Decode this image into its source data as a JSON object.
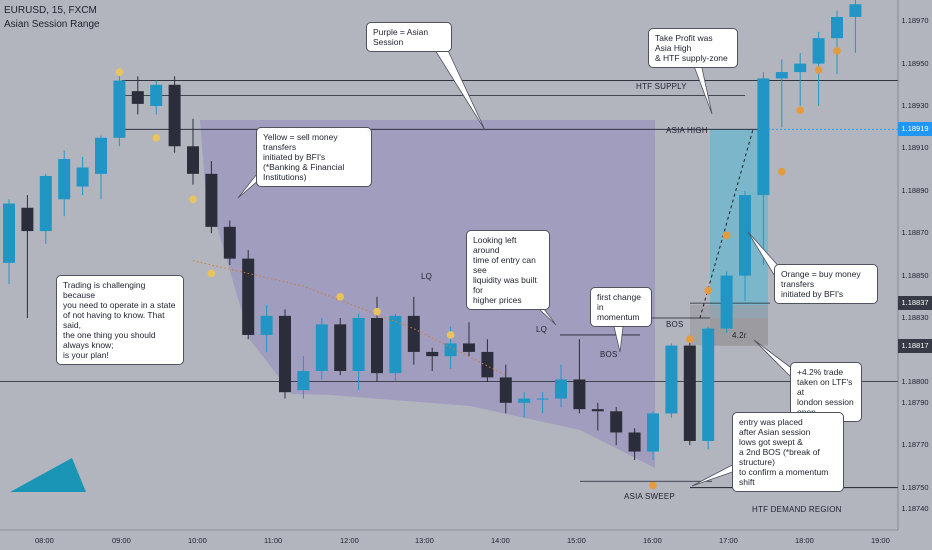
{
  "header": {
    "symbol": "EURUSD, 15, FXCM",
    "indicator": "Asian Session Range"
  },
  "colors": {
    "bg": "#b2b5be",
    "bull": "#2196c5",
    "bear": "#2b2e3a",
    "session": "#9b95be",
    "yellow": "#e8c45c",
    "orange": "#e59b3c",
    "longzone": "#4fb6d6",
    "price_tag_blue": "#2196f3",
    "price_tag_dark": "#363a45"
  },
  "chart_data": {
    "type": "candlestick",
    "ylim": [
      1.1873,
      1.1898
    ],
    "y_ticks": [
      "1.18970",
      "1.18950",
      "1.18930",
      "1.18919",
      "1.18910",
      "1.18890",
      "1.18870",
      "1.18850",
      "1.18837",
      "1.18830",
      "1.18817",
      "1.18800",
      "1.18790",
      "1.18770",
      "1.18750",
      "1.18740"
    ],
    "x_ticks": [
      "08:00",
      "09:00",
      "10:00",
      "11:00",
      "12:00",
      "13:00",
      "14:00",
      "15:00",
      "16:00",
      "17:00",
      "18:00",
      "19:00"
    ],
    "current_price": "1.18919",
    "candles": [
      {
        "o": 1.18856,
        "h": 1.18886,
        "l": 1.18846,
        "c": 1.18884
      },
      {
        "o": 1.18882,
        "h": 1.18888,
        "l": 1.1883,
        "c": 1.18871
      },
      {
        "o": 1.18871,
        "h": 1.18898,
        "l": 1.18865,
        "c": 1.18897
      },
      {
        "o": 1.18886,
        "h": 1.18909,
        "l": 1.18878,
        "c": 1.18905
      },
      {
        "o": 1.18892,
        "h": 1.18906,
        "l": 1.18888,
        "c": 1.18901
      },
      {
        "o": 1.18898,
        "h": 1.18916,
        "l": 1.18886,
        "c": 1.18915
      },
      {
        "o": 1.18915,
        "h": 1.18944,
        "l": 1.18911,
        "c": 1.18942
      },
      {
        "o": 1.18937,
        "h": 1.18944,
        "l": 1.18926,
        "c": 1.18931
      },
      {
        "o": 1.1893,
        "h": 1.18942,
        "l": 1.18926,
        "c": 1.1894
      },
      {
        "o": 1.1894,
        "h": 1.18944,
        "l": 1.18908,
        "c": 1.18911
      },
      {
        "o": 1.18911,
        "h": 1.18924,
        "l": 1.18893,
        "c": 1.18898
      },
      {
        "o": 1.18898,
        "h": 1.18904,
        "l": 1.1887,
        "c": 1.18873
      },
      {
        "o": 1.18873,
        "h": 1.18876,
        "l": 1.18855,
        "c": 1.18858
      },
      {
        "o": 1.18858,
        "h": 1.18862,
        "l": 1.1882,
        "c": 1.18822
      },
      {
        "o": 1.18822,
        "h": 1.18836,
        "l": 1.18814,
        "c": 1.18831
      },
      {
        "o": 1.18831,
        "h": 1.18834,
        "l": 1.18792,
        "c": 1.18795
      },
      {
        "o": 1.18796,
        "h": 1.18812,
        "l": 1.18792,
        "c": 1.18805
      },
      {
        "o": 1.18805,
        "h": 1.1883,
        "l": 1.18801,
        "c": 1.18827
      },
      {
        "o": 1.18827,
        "h": 1.1883,
        "l": 1.18803,
        "c": 1.18805
      },
      {
        "o": 1.18805,
        "h": 1.18832,
        "l": 1.18796,
        "c": 1.1883
      },
      {
        "o": 1.1883,
        "h": 1.1884,
        "l": 1.188,
        "c": 1.18804
      },
      {
        "o": 1.18804,
        "h": 1.18832,
        "l": 1.188,
        "c": 1.18831
      },
      {
        "o": 1.18831,
        "h": 1.1884,
        "l": 1.18808,
        "c": 1.18814
      },
      {
        "o": 1.18814,
        "h": 1.18816,
        "l": 1.18805,
        "c": 1.18812
      },
      {
        "o": 1.18812,
        "h": 1.18826,
        "l": 1.18806,
        "c": 1.18818
      },
      {
        "o": 1.18818,
        "h": 1.18828,
        "l": 1.18812,
        "c": 1.18814
      },
      {
        "o": 1.18814,
        "h": 1.1882,
        "l": 1.188,
        "c": 1.18802
      },
      {
        "o": 1.18802,
        "h": 1.18808,
        "l": 1.18785,
        "c": 1.1879
      },
      {
        "o": 1.1879,
        "h": 1.18795,
        "l": 1.18783,
        "c": 1.18792
      },
      {
        "o": 1.18792,
        "h": 1.18795,
        "l": 1.18785,
        "c": 1.18792
      },
      {
        "o": 1.18792,
        "h": 1.18808,
        "l": 1.18788,
        "c": 1.18801
      },
      {
        "o": 1.18801,
        "h": 1.1882,
        "l": 1.18785,
        "c": 1.18787
      },
      {
        "o": 1.18787,
        "h": 1.1879,
        "l": 1.18777,
        "c": 1.18786
      },
      {
        "o": 1.18786,
        "h": 1.18788,
        "l": 1.1877,
        "c": 1.18776
      },
      {
        "o": 1.18776,
        "h": 1.18778,
        "l": 1.18763,
        "c": 1.18767
      },
      {
        "o": 1.18767,
        "h": 1.18786,
        "l": 1.18763,
        "c": 1.18785
      },
      {
        "o": 1.18785,
        "h": 1.18818,
        "l": 1.18783,
        "c": 1.18817
      },
      {
        "o": 1.18817,
        "h": 1.1882,
        "l": 1.1877,
        "c": 1.18772
      },
      {
        "o": 1.18772,
        "h": 1.18826,
        "l": 1.18768,
        "c": 1.18825
      },
      {
        "o": 1.18825,
        "h": 1.18852,
        "l": 1.18823,
        "c": 1.1885
      },
      {
        "o": 1.1885,
        "h": 1.1889,
        "l": 1.18838,
        "c": 1.18888
      },
      {
        "o": 1.18888,
        "h": 1.18946,
        "l": 1.18855,
        "c": 1.18943
      },
      {
        "o": 1.18943,
        "h": 1.18952,
        "l": 1.1892,
        "c": 1.18946
      },
      {
        "o": 1.18946,
        "h": 1.18955,
        "l": 1.1893,
        "c": 1.1895
      },
      {
        "o": 1.1895,
        "h": 1.18965,
        "l": 1.1893,
        "c": 1.18962
      },
      {
        "o": 1.18962,
        "h": 1.18975,
        "l": 1.18945,
        "c": 1.18972
      },
      {
        "o": 1.18972,
        "h": 1.1898,
        "l": 1.18955,
        "c": 1.18978
      }
    ],
    "yellow_dots": [
      [
        6,
        1.18946
      ],
      [
        8,
        1.18915
      ],
      [
        10,
        1.18886
      ],
      [
        11,
        1.18851
      ],
      [
        18,
        1.1884
      ],
      [
        20,
        1.18833
      ],
      [
        24,
        1.18822
      ]
    ],
    "orange_dots": [
      [
        35,
        1.18751
      ],
      [
        37,
        1.1882
      ],
      [
        38,
        1.18843
      ],
      [
        39,
        1.18869
      ],
      [
        42,
        1.18899
      ],
      [
        43,
        1.18928
      ],
      [
        44,
        1.18947
      ],
      [
        45,
        1.18956
      ]
    ],
    "lq_dots": [
      [
        10,
        1.18857
      ],
      [
        16,
        1.18845
      ],
      [
        22,
        1.18825
      ],
      [
        27,
        1.18803
      ]
    ]
  },
  "levels": {
    "htf_supply": {
      "label": "HTF SUPPLY",
      "price": 1.18935
    },
    "asia_high": {
      "label": "ASIA HIGH",
      "price": 1.18919
    },
    "bos": {
      "label": "BOS",
      "price": 1.18822
    },
    "bos2": {
      "label": "BOS",
      "price": 1.1883
    },
    "asia_sweep": {
      "label": "ASIA SWEEP",
      "price": 1.18753
    },
    "htf_demand": {
      "label": "HTF DEMAND REGION",
      "price": 1.1875
    },
    "lq1": "LQ",
    "lq2": "LQ",
    "ratio": "4.2r"
  },
  "callouts": {
    "purple": "Purple = Asian Session",
    "take_profit": "Take Profit was Asia High\n& HTF supply-zone",
    "yellow": "Yellow = sell money transfers\ninitiated by BFI's\n(*Banking & Financial Institutions)",
    "looking_left": "Looking left around\ntime of entry can see\nliquidity was built for\nhigher prices",
    "first_change": "first change in\nmomentum",
    "trading": "Trading is challenging because\nyou need to operate in a state\nof not having to know. That said,\nthe one thing you should always know;\nis your plan!",
    "orange": "Orange = buy money transfers\ninitiated by BFI's",
    "trade": "+4.2% trade\ntaken on LTF's at\nlondon session open",
    "entry": "entry was placed\nafter Asian session\nlows got swept &\na 2nd BOS (*break of structure)\nto confirm a momentum shift"
  }
}
